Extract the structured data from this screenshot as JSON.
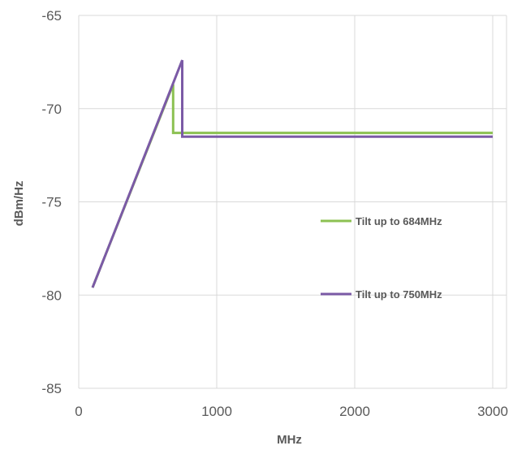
{
  "chart_data": {
    "type": "line",
    "xlabel": "MHz",
    "ylabel": "dBm/Hz",
    "xlim": [
      0,
      3100
    ],
    "ylim": [
      -85,
      -65
    ],
    "xticks": [
      0,
      1000,
      2000,
      3000
    ],
    "yticks": [
      -65,
      -70,
      -75,
      -80,
      -85
    ],
    "grid": true,
    "legend_position": "right-middle",
    "series": [
      {
        "name": "Tilt up to 684MHz",
        "color": "#8cc152",
        "x": [
          100,
          684,
          684,
          3000
        ],
        "y": [
          -79.6,
          -68.7,
          -71.3,
          -71.3
        ]
      },
      {
        "name": "Tilt up to 750MHz",
        "color": "#7b5aa6",
        "x": [
          100,
          750,
          750,
          3000
        ],
        "y": [
          -79.6,
          -67.4,
          -71.5,
          -71.5
        ]
      }
    ]
  }
}
